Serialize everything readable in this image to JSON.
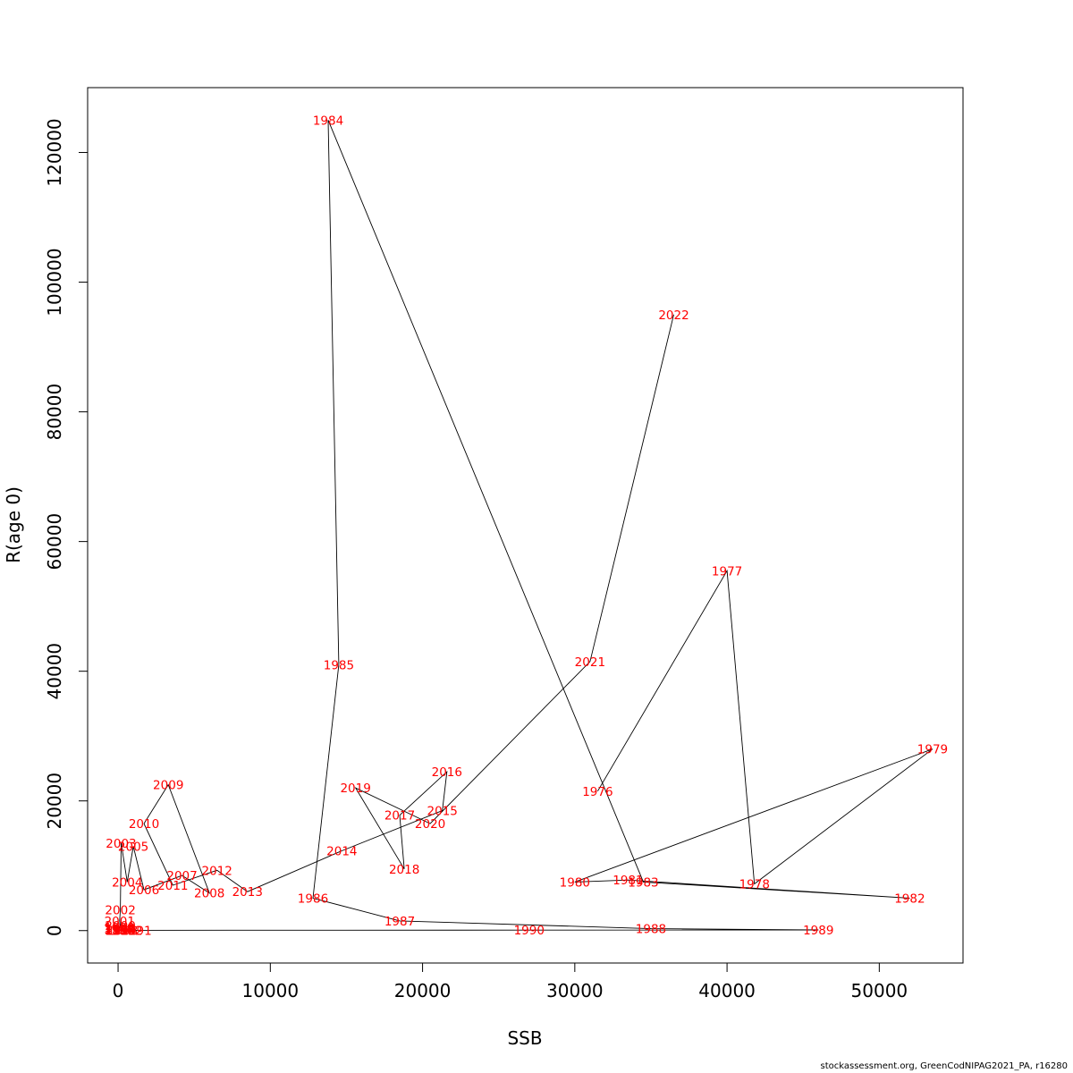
{
  "chart_data": {
    "type": "line",
    "xlabel": "SSB",
    "ylabel": "R(age 0)",
    "xlim": [
      -2000,
      55500
    ],
    "ylim": [
      -5000,
      130000
    ],
    "x_ticks": [
      0,
      10000,
      20000,
      30000,
      40000,
      50000
    ],
    "y_ticks": [
      0,
      20000,
      40000,
      60000,
      80000,
      100000,
      120000
    ],
    "grid": false,
    "series": [
      {
        "points": [
          {
            "year": "1976",
            "x": 31500,
            "y": 21500
          },
          {
            "year": "1977",
            "x": 40000,
            "y": 55500
          },
          {
            "year": "1978",
            "x": 41800,
            "y": 7200
          },
          {
            "year": "1979",
            "x": 53500,
            "y": 28000
          },
          {
            "year": "1980",
            "x": 30000,
            "y": 7500
          },
          {
            "year": "1981",
            "x": 33500,
            "y": 7800
          },
          {
            "year": "1982",
            "x": 52000,
            "y": 5000
          },
          {
            "year": "1983",
            "x": 34500,
            "y": 7500
          },
          {
            "year": "1984",
            "x": 13800,
            "y": 125000
          },
          {
            "year": "1985",
            "x": 14500,
            "y": 41000
          },
          {
            "year": "1986",
            "x": 12800,
            "y": 5000
          },
          {
            "year": "1987",
            "x": 18500,
            "y": 1500
          },
          {
            "year": "1988",
            "x": 35000,
            "y": 300
          },
          {
            "year": "1989",
            "x": 46000,
            "y": 100
          },
          {
            "year": "1990",
            "x": 27000,
            "y": 80
          },
          {
            "year": "1991",
            "x": 1200,
            "y": 50
          },
          {
            "year": "1992",
            "x": 600,
            "y": 40
          },
          {
            "year": "1993",
            "x": 300,
            "y": 30
          },
          {
            "year": "1994",
            "x": 200,
            "y": 30
          },
          {
            "year": "1995",
            "x": 150,
            "y": 50
          },
          {
            "year": "1996",
            "x": 100,
            "y": 100
          },
          {
            "year": "1997",
            "x": 80,
            "y": 200
          },
          {
            "year": "1998",
            "x": 60,
            "y": 300
          },
          {
            "year": "1999",
            "x": 100,
            "y": 500
          },
          {
            "year": "2000",
            "x": 150,
            "y": 800
          },
          {
            "year": "2001",
            "x": 100,
            "y": 1500
          },
          {
            "year": "2002",
            "x": 150,
            "y": 3200
          },
          {
            "year": "2003",
            "x": 200,
            "y": 13500
          },
          {
            "year": "2004",
            "x": 600,
            "y": 7500
          },
          {
            "year": "2005",
            "x": 1000,
            "y": 13000
          },
          {
            "year": "2006",
            "x": 1700,
            "y": 6300
          },
          {
            "year": "2007",
            "x": 4200,
            "y": 8500
          },
          {
            "year": "2008",
            "x": 6000,
            "y": 5800
          },
          {
            "year": "2009",
            "x": 3300,
            "y": 22500
          },
          {
            "year": "2010",
            "x": 1700,
            "y": 16500
          },
          {
            "year": "2011",
            "x": 3600,
            "y": 7000
          },
          {
            "year": "2012",
            "x": 6500,
            "y": 9300
          },
          {
            "year": "2013",
            "x": 8500,
            "y": 6000
          },
          {
            "year": "2014",
            "x": 14700,
            "y": 12300
          },
          {
            "year": "2015",
            "x": 21300,
            "y": 18500
          },
          {
            "year": "2016",
            "x": 21600,
            "y": 24500
          },
          {
            "year": "2017",
            "x": 18500,
            "y": 17800
          },
          {
            "year": "2018",
            "x": 18800,
            "y": 9500
          },
          {
            "year": "2019",
            "x": 15600,
            "y": 22000
          },
          {
            "year": "2020",
            "x": 20500,
            "y": 16500
          },
          {
            "year": "2021",
            "x": 31000,
            "y": 41500
          },
          {
            "year": "2022",
            "x": 36500,
            "y": 95000
          }
        ]
      }
    ]
  },
  "colors": {
    "label": "#ff0000",
    "line": "#000000",
    "axis": "#000000"
  },
  "footer": "stockassessment.org, GreenCodNIPAG2021_PA, r16280"
}
